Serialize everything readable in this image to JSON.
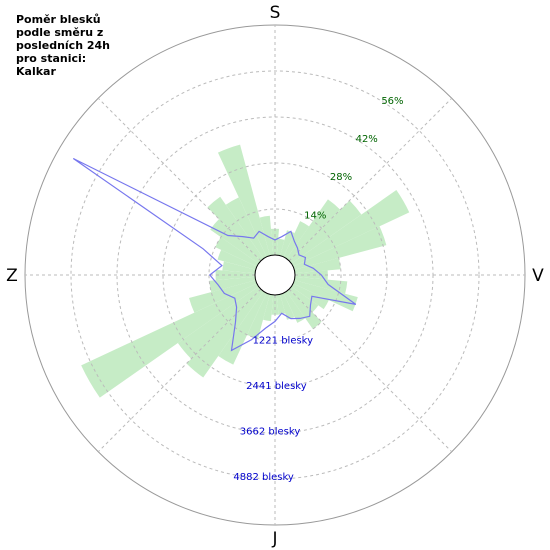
{
  "chart_data": {
    "type": "polar",
    "title": "Poměr blesků podle směru z posledních 24h pro stanici: Kalkar",
    "directions": [
      "S",
      "V",
      "J",
      "Z"
    ],
    "theta": [
      0,
      10,
      20,
      30,
      40,
      50,
      60,
      70,
      80,
      90,
      100,
      110,
      120,
      130,
      140,
      150,
      160,
      170,
      180,
      190,
      200,
      210,
      220,
      230,
      240,
      250,
      260,
      270,
      280,
      290,
      300,
      310,
      320,
      330,
      340,
      350
    ],
    "series": [
      {
        "color": "#c6ecc6",
        "axis": "r",
        "values": [
          8,
          5,
          8,
          12,
          22,
          26,
          39,
          29,
          14,
          10,
          16,
          20,
          12,
          10,
          14,
          10,
          8,
          6,
          6,
          8,
          14,
          24,
          32,
          30,
          59,
          21,
          14,
          12,
          10,
          12,
          14,
          18,
          23,
          20,
          35,
          12
        ]
      },
      {
        "color": "#7777ee",
        "axis": "r2",
        "values": [
          400,
          500,
          700,
          500,
          400,
          300,
          400,
          300,
          500,
          700,
          900,
          1750,
          600,
          700,
          900,
          800,
          700,
          500,
          700,
          900,
          1300,
          1780,
          1100,
          800,
          700,
          900,
          1000,
          1200,
          900,
          1500,
          5650,
          1100,
          800,
          600,
          700,
          500
        ]
      }
    ],
    "rlim": [
      0,
      70
    ],
    "rticks": [
      {
        "value": 14,
        "label": "14%"
      },
      {
        "value": 28,
        "label": "28%"
      },
      {
        "value": 42,
        "label": "42%"
      },
      {
        "value": 56,
        "label": "56%"
      }
    ],
    "r2lim": [
      0,
      6103
    ],
    "r2ticks": [
      {
        "value": 1221,
        "label": "1221 blesky"
      },
      {
        "value": 2441,
        "label": "2441 blesky"
      },
      {
        "value": 3662,
        "label": "3662 blesky"
      },
      {
        "value": 4882,
        "label": "4882 blesky"
      }
    ],
    "grid": true
  }
}
